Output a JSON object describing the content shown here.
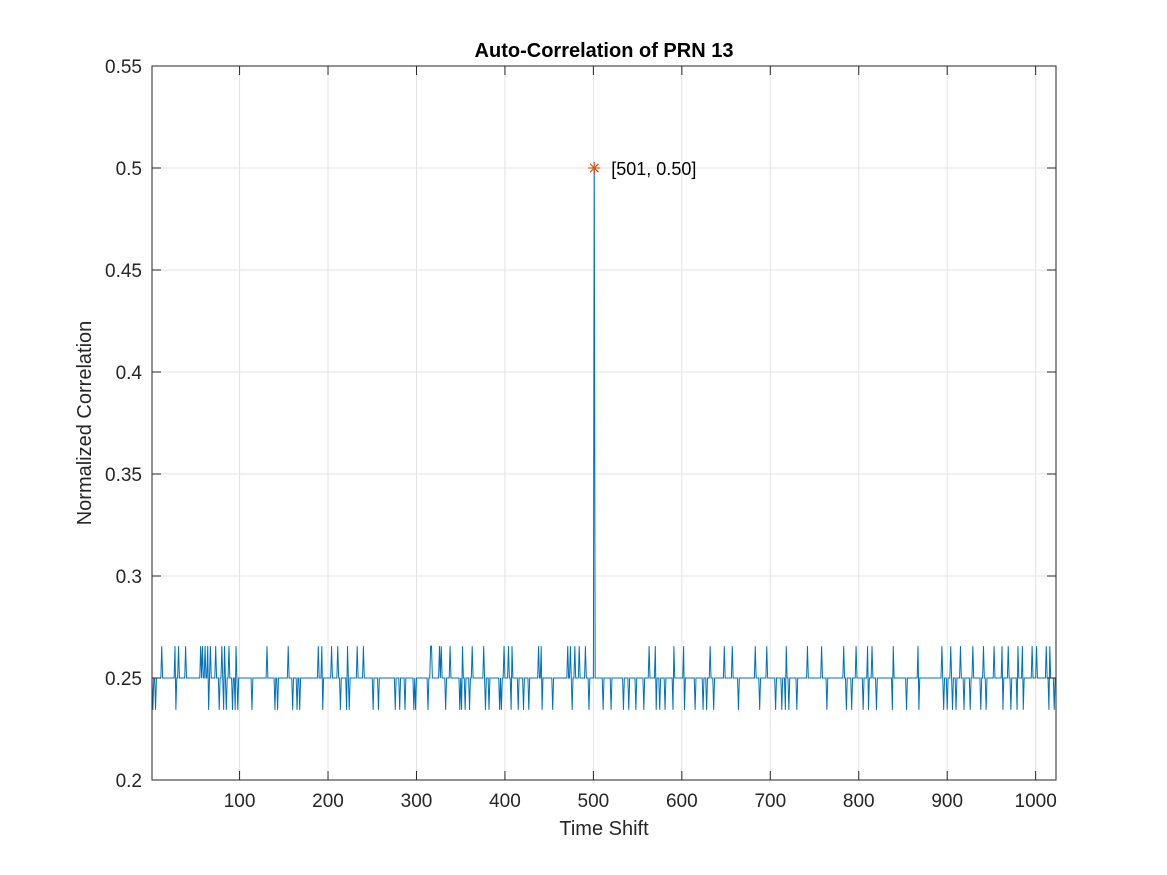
{
  "chart_data": {
    "type": "line",
    "title": "Auto-Correlation of PRN 13",
    "xlabel": "Time Shift",
    "ylabel": "Normalized Correlation",
    "xlim": [
      1,
      1023
    ],
    "ylim": [
      0.2,
      0.55
    ],
    "xticks": [
      100,
      200,
      300,
      400,
      500,
      600,
      700,
      800,
      900,
      1000
    ],
    "xtick_labels": [
      "100",
      "200",
      "300",
      "400",
      "500",
      "600",
      "700",
      "800",
      "900",
      "1000"
    ],
    "yticks": [
      0.2,
      0.25,
      0.3,
      0.35,
      0.4,
      0.45,
      0.5,
      0.55
    ],
    "ytick_labels": [
      "0.2",
      "0.25",
      "0.3",
      "0.35",
      "0.4",
      "0.45",
      "0.5",
      "0.55"
    ],
    "grid": true,
    "series": [
      {
        "color": "#0072BD",
        "baseline": 0.25,
        "high_value": 0.265625,
        "low_value": 0.234375,
        "peak": {
          "x": 501,
          "y": 0.5
        },
        "high_shifts": [
          12,
          27,
          31,
          39,
          56,
          58,
          61,
          64,
          67,
          73,
          77,
          80,
          83,
          88,
          96,
          131,
          155,
          189,
          193,
          204,
          211,
          222,
          233,
          240,
          297,
          316,
          317,
          326,
          328,
          338,
          352,
          363,
          376,
          399,
          404,
          408,
          438,
          441,
          471,
          474,
          479,
          484,
          491,
          563,
          570,
          591,
          602,
          632,
          648,
          657,
          683,
          696,
          718,
          742,
          758,
          783,
          797,
          810,
          815,
          839,
          867,
          894,
          904,
          906,
          910,
          915,
          929,
          941,
          953,
          962,
          969,
          980,
          985,
          996,
          1001,
          1012,
          1016
        ],
        "low_shifts": [
          2,
          5,
          28,
          65,
          77,
          82,
          85,
          92,
          95,
          98,
          114,
          140,
          143,
          160,
          165,
          168,
          194,
          214,
          221,
          224,
          251,
          257,
          276,
          281,
          287,
          297,
          299,
          313,
          333,
          349,
          351,
          355,
          360,
          378,
          382,
          394,
          396,
          407,
          415,
          421,
          427,
          442,
          454,
          476,
          495,
          511,
          520,
          534,
          540,
          548,
          557,
          571,
          575,
          581,
          590,
          603,
          615,
          624,
          628,
          636,
          664,
          688,
          706,
          713,
          717,
          721,
          730,
          764,
          786,
          792,
          805,
          811,
          820,
          838,
          854,
          868,
          896,
          900,
          906,
          910,
          919,
          926,
          938,
          944,
          963,
          972,
          979,
          986,
          1015,
          1021
        ]
      }
    ],
    "annotation": {
      "x": 501,
      "y": 0.5,
      "text": "[501, 0.50]",
      "marker": "asterisk",
      "color": "#D95319"
    }
  }
}
